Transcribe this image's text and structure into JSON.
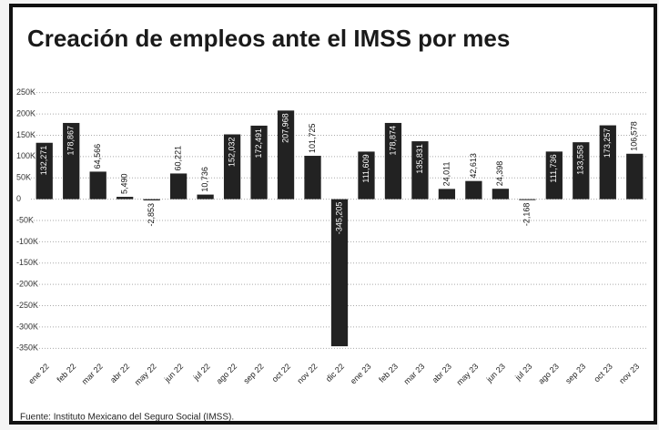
{
  "chart_data": {
    "type": "bar",
    "title": "Creación de empleos ante el IMSS por mes",
    "source": "Fuente: Instituto Mexicano del Seguro Social (IMSS).",
    "categories": [
      "ene 22",
      "feb 22",
      "mar 22",
      "abr 22",
      "may 22",
      "jun 22",
      "jul 22",
      "ago 22",
      "sep 22",
      "oct 22",
      "nov 22",
      "dic 22",
      "ene 23",
      "feb 23",
      "mar 23",
      "abr 23",
      "may 23",
      "jun 23",
      "jul 23",
      "ago 23",
      "sep 23",
      "oct 23",
      "nov 23"
    ],
    "values": [
      132271,
      178867,
      64566,
      5490,
      -2853,
      60221,
      10736,
      152032,
      172491,
      207968,
      101725,
      -345205,
      111609,
      178874,
      135831,
      24011,
      42613,
      24398,
      -2168,
      111736,
      133558,
      173257,
      106578
    ],
    "value_labels": [
      "132,271",
      "178,867",
      "64,566",
      "5,490",
      "-2,853",
      "60,221",
      "10,736",
      "152,032",
      "172,491",
      "207,968",
      "101,725",
      "-345,205",
      "111,609",
      "178,874",
      "135,831",
      "24,011",
      "42,613",
      "24,398",
      "-2,168",
      "111,736",
      "133,558",
      "173,257",
      "106,578"
    ],
    "color": "#222222",
    "ylim": [
      -360000,
      260000
    ],
    "yticks": [
      {
        "value": 250000,
        "label": "250K"
      },
      {
        "value": 200000,
        "label": "200K"
      },
      {
        "value": 150000,
        "label": "150K"
      },
      {
        "value": 100000,
        "label": "100K"
      },
      {
        "value": 50000,
        "label": "50K"
      },
      0,
      {
        "value": -50000,
        "label": "-50K"
      },
      {
        "value": -100000,
        "label": "-100K"
      },
      {
        "value": -150000,
        "label": "-150K"
      },
      {
        "value": -200000,
        "label": "-200K"
      },
      {
        "value": -250000,
        "label": "-250K"
      },
      {
        "value": -300000,
        "label": "-300K"
      },
      {
        "value": -350000,
        "label": "-350K"
      }
    ],
    "grid": true
  }
}
